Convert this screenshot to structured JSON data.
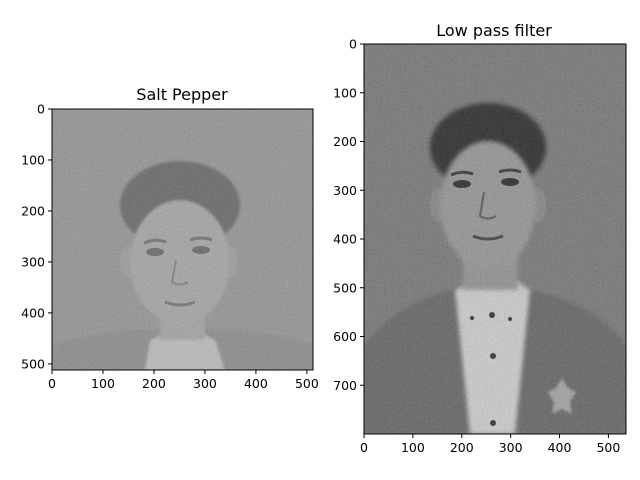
{
  "chart_data": [
    {
      "type": "image",
      "title": "Salt Pepper",
      "xlabel": "",
      "ylabel": "",
      "image_shape": [
        512,
        512
      ],
      "xlim": [
        0,
        512
      ],
      "ylim": [
        512,
        0
      ],
      "xticks": [
        0,
        100,
        200,
        300,
        400,
        500
      ],
      "yticks": [
        0,
        100,
        200,
        300,
        400,
        500
      ],
      "colormap": "gray",
      "content": "grayscale portrait with salt-and-pepper noise"
    },
    {
      "type": "image",
      "title": "Low pass filter",
      "xlabel": "",
      "ylabel": "",
      "image_shape": [
        800,
        536
      ],
      "xlim": [
        0,
        536
      ],
      "ylim": [
        800,
        0
      ],
      "xticks": [
        0,
        100,
        200,
        300,
        400,
        500
      ],
      "yticks": [
        0,
        100,
        200,
        300,
        400,
        500,
        600,
        700
      ],
      "colormap": "gray",
      "content": "grayscale portrait after low pass filtering"
    }
  ]
}
